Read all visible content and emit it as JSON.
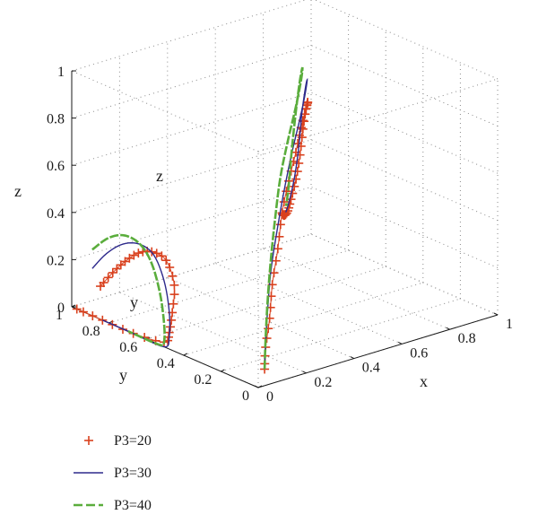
{
  "chart_data": {
    "type": "line",
    "projection": "3d",
    "axes": {
      "x": {
        "label": "x",
        "range": [
          0,
          1
        ],
        "ticks": [
          "0",
          "0.2",
          "0.4",
          "0.6",
          "0.8",
          "1"
        ]
      },
      "y": {
        "label": "y",
        "range": [
          0,
          1
        ],
        "ticks": [
          "0",
          "0.2",
          "0.4",
          "0.6",
          "0.8",
          "1"
        ]
      },
      "z": {
        "label": "z",
        "range": [
          0,
          1
        ],
        "ticks": [
          "0",
          "0.2",
          "0.4",
          "0.6",
          "0.8",
          "1"
        ]
      }
    },
    "inner_labels": {
      "z": "z",
      "y": "y"
    },
    "grid": true,
    "legend_position": "bottom-left",
    "series": [
      {
        "name": "P3=20",
        "style": "plus-markers",
        "color": "#d9411e",
        "trajectory": [
          [
            0.12,
            0.12,
            0.0
          ],
          [
            0.14,
            0.14,
            0.08
          ],
          [
            0.18,
            0.17,
            0.18
          ],
          [
            0.23,
            0.22,
            0.29
          ],
          [
            0.3,
            0.28,
            0.4
          ],
          [
            0.38,
            0.36,
            0.5
          ],
          [
            0.47,
            0.44,
            0.58
          ],
          [
            0.57,
            0.53,
            0.64
          ],
          [
            0.67,
            0.63,
            0.68
          ],
          [
            0.76,
            0.72,
            0.7
          ],
          [
            0.83,
            0.8,
            0.68
          ],
          [
            0.87,
            0.86,
            0.62
          ],
          [
            0.88,
            0.89,
            0.52
          ],
          [
            0.86,
            0.88,
            0.42
          ],
          [
            0.82,
            0.85,
            0.34
          ],
          [
            0.76,
            0.8,
            0.29
          ],
          [
            0.7,
            0.74,
            0.28
          ],
          [
            0.64,
            0.68,
            0.3
          ],
          [
            0.6,
            0.64,
            0.33
          ]
        ],
        "projection_yz": [
          [
            0.28,
            0.14
          ],
          [
            0.4,
            0.22
          ],
          [
            0.52,
            0.29
          ],
          [
            0.65,
            0.35
          ],
          [
            0.78,
            0.38
          ],
          [
            0.92,
            0.37
          ],
          [
            1.0,
            0.28
          ],
          [
            0.98,
            0.16
          ],
          [
            0.95,
            0.07
          ],
          [
            0.9,
            0.02
          ],
          [
            0.6,
            0.0
          ],
          [
            0.3,
            0.0
          ],
          [
            0.05,
            0.0
          ]
        ]
      },
      {
        "name": "P3=30",
        "style": "solid",
        "color": "#2e2a8c",
        "trajectory": [
          [
            0.12,
            0.12,
            0.0
          ],
          [
            0.14,
            0.14,
            0.1
          ],
          [
            0.18,
            0.18,
            0.22
          ],
          [
            0.24,
            0.24,
            0.34
          ],
          [
            0.32,
            0.31,
            0.46
          ],
          [
            0.42,
            0.4,
            0.57
          ],
          [
            0.53,
            0.5,
            0.66
          ],
          [
            0.64,
            0.6,
            0.73
          ],
          [
            0.74,
            0.7,
            0.77
          ],
          [
            0.82,
            0.79,
            0.78
          ],
          [
            0.86,
            0.85,
            0.72
          ],
          [
            0.86,
            0.87,
            0.6
          ],
          [
            0.83,
            0.85,
            0.46
          ],
          [
            0.78,
            0.81,
            0.36
          ],
          [
            0.71,
            0.75,
            0.3
          ],
          [
            0.66,
            0.7,
            0.3
          ]
        ],
        "projection_yz": [
          [
            0.2,
            0.2
          ],
          [
            0.34,
            0.29
          ],
          [
            0.5,
            0.36
          ],
          [
            0.66,
            0.39
          ],
          [
            0.8,
            0.37
          ],
          [
            0.9,
            0.28
          ],
          [
            0.95,
            0.16
          ],
          [
            0.95,
            0.05
          ],
          [
            0.9,
            0.0
          ],
          [
            0.6,
            0.0
          ],
          [
            0.3,
            0.0
          ]
        ]
      },
      {
        "name": "P3=40",
        "style": "dashed",
        "color": "#5aad3c",
        "trajectory": [
          [
            0.12,
            0.12,
            0.0
          ],
          [
            0.14,
            0.14,
            0.12
          ],
          [
            0.18,
            0.18,
            0.26
          ],
          [
            0.24,
            0.24,
            0.39
          ],
          [
            0.32,
            0.32,
            0.51
          ],
          [
            0.42,
            0.42,
            0.62
          ],
          [
            0.53,
            0.52,
            0.71
          ],
          [
            0.64,
            0.62,
            0.78
          ],
          [
            0.74,
            0.72,
            0.83
          ],
          [
            0.8,
            0.79,
            0.84
          ],
          [
            0.82,
            0.83,
            0.76
          ],
          [
            0.81,
            0.84,
            0.62
          ],
          [
            0.77,
            0.81,
            0.48
          ],
          [
            0.72,
            0.76,
            0.38
          ],
          [
            0.67,
            0.71,
            0.32
          ]
        ],
        "projection_yz": [
          [
            0.2,
            0.28
          ],
          [
            0.36,
            0.36
          ],
          [
            0.52,
            0.4
          ],
          [
            0.67,
            0.39
          ],
          [
            0.78,
            0.33
          ],
          [
            0.86,
            0.22
          ],
          [
            0.9,
            0.1
          ],
          [
            0.9,
            0.02
          ],
          [
            0.85,
            0.0
          ],
          [
            0.55,
            0.0
          ]
        ]
      }
    ]
  }
}
